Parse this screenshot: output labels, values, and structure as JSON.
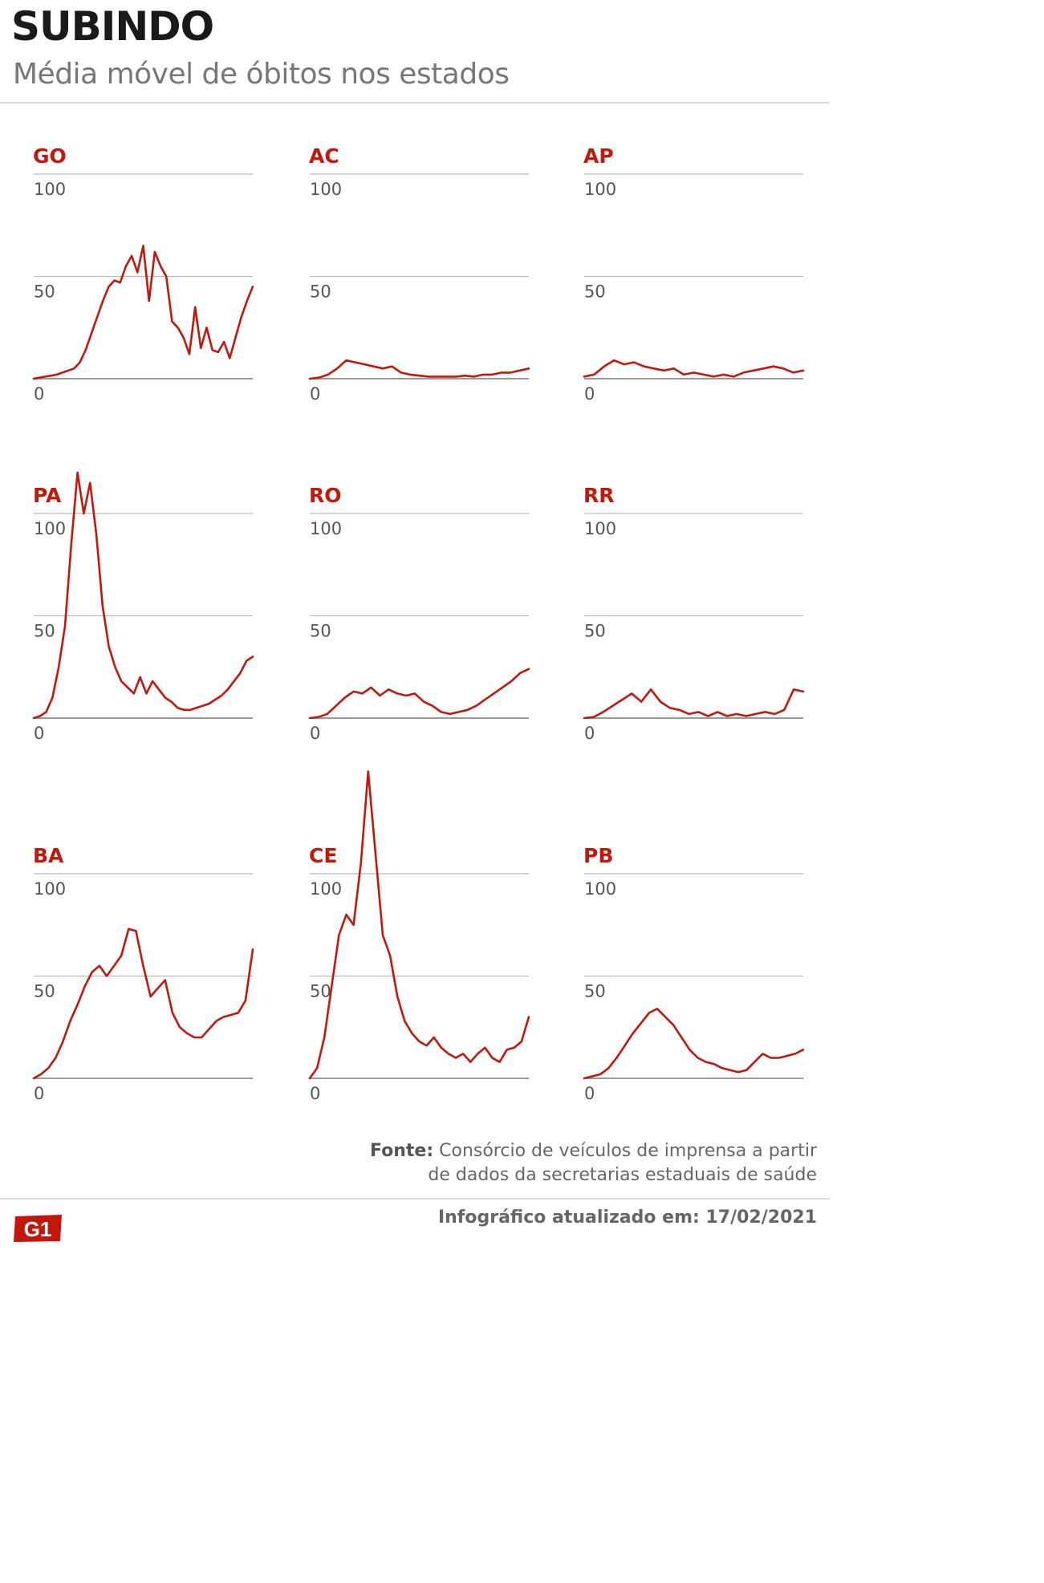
{
  "header": {
    "title": "SUBINDO",
    "subtitle": "Média móvel de óbitos nos estados"
  },
  "footer": {
    "source_label": "Fonte:",
    "source_line1": "Consórcio de veículos de imprensa a partir",
    "source_line2": "de dados da secretarias estaduais de saúde",
    "updated": "Infográfico atualizado em: 17/02/2021",
    "logo_text": "G1"
  },
  "colors": {
    "accent": "#c4170c",
    "grid": "#bbbbbb",
    "text_muted": "#777777"
  },
  "chart_data": [
    {
      "type": "line",
      "state": "GO",
      "ylim": [
        0,
        100
      ],
      "yticks": [
        0,
        50,
        100
      ],
      "series": [
        {
          "values": [
            0,
            0.5,
            1,
            1.5,
            2,
            3,
            4,
            5,
            8,
            14,
            22,
            30,
            38,
            45,
            48,
            47,
            55,
            60,
            52,
            65,
            38,
            62,
            55,
            50,
            28,
            25,
            20,
            12,
            35,
            15,
            25,
            14,
            13,
            18,
            10,
            20,
            30,
            38,
            45
          ]
        }
      ]
    },
    {
      "type": "line",
      "state": "AC",
      "ylim": [
        0,
        100
      ],
      "yticks": [
        0,
        50,
        100
      ],
      "series": [
        {
          "values": [
            0,
            0.5,
            2,
            5,
            9,
            8,
            7,
            6,
            5,
            6,
            3,
            2,
            1.5,
            1,
            1,
            1,
            1,
            1.5,
            1,
            2,
            2,
            3,
            3,
            4,
            5
          ]
        }
      ]
    },
    {
      "type": "line",
      "state": "AP",
      "ylim": [
        0,
        100
      ],
      "yticks": [
        0,
        50,
        100
      ],
      "series": [
        {
          "values": [
            1,
            2,
            6,
            9,
            7,
            8,
            6,
            5,
            4,
            5,
            2,
            3,
            2,
            1,
            2,
            1,
            3,
            4,
            5,
            6,
            5,
            3,
            4
          ]
        }
      ]
    },
    {
      "type": "line",
      "state": "PA",
      "ylim": [
        0,
        100
      ],
      "yticks": [
        0,
        50,
        100
      ],
      "series": [
        {
          "values": [
            0,
            1,
            3,
            10,
            25,
            45,
            85,
            120,
            100,
            115,
            90,
            55,
            35,
            25,
            18,
            15,
            12,
            20,
            12,
            18,
            14,
            10,
            8,
            5,
            4,
            4,
            5,
            6,
            7,
            9,
            11,
            14,
            18,
            22,
            28,
            30
          ]
        }
      ]
    },
    {
      "type": "line",
      "state": "RO",
      "ylim": [
        0,
        100
      ],
      "yticks": [
        0,
        50,
        100
      ],
      "series": [
        {
          "values": [
            0,
            0.5,
            2,
            6,
            10,
            13,
            12,
            15,
            11,
            14,
            12,
            11,
            12,
            8,
            6,
            3,
            2,
            3,
            4,
            6,
            9,
            12,
            15,
            18,
            22,
            24
          ]
        }
      ]
    },
    {
      "type": "line",
      "state": "RR",
      "ylim": [
        0,
        100
      ],
      "yticks": [
        0,
        50,
        100
      ],
      "series": [
        {
          "values": [
            0,
            0.5,
            3,
            6,
            9,
            12,
            8,
            14,
            8,
            5,
            4,
            2,
            3,
            1,
            3,
            1,
            2,
            1,
            2,
            3,
            2,
            4,
            14,
            13
          ]
        }
      ]
    },
    {
      "type": "line",
      "state": "BA",
      "ylim": [
        0,
        100
      ],
      "yticks": [
        0,
        50,
        100
      ],
      "series": [
        {
          "values": [
            0,
            2,
            5,
            10,
            18,
            28,
            36,
            45,
            52,
            55,
            50,
            55,
            60,
            73,
            72,
            55,
            40,
            44,
            48,
            32,
            25,
            22,
            20,
            20,
            24,
            28,
            30,
            31,
            32,
            38,
            63
          ]
        }
      ]
    },
    {
      "type": "line",
      "state": "CE",
      "ylim": [
        0,
        100
      ],
      "yticks": [
        0,
        50,
        100
      ],
      "series": [
        {
          "values": [
            0,
            5,
            20,
            45,
            70,
            80,
            75,
            105,
            150,
            110,
            70,
            60,
            40,
            28,
            22,
            18,
            16,
            20,
            15,
            12,
            10,
            12,
            8,
            12,
            15,
            10,
            8,
            14,
            15,
            18,
            30
          ]
        }
      ]
    },
    {
      "type": "line",
      "state": "PB",
      "ylim": [
        0,
        100
      ],
      "yticks": [
        0,
        50,
        100
      ],
      "series": [
        {
          "values": [
            0,
            1,
            2,
            5,
            10,
            16,
            22,
            27,
            32,
            34,
            30,
            26,
            20,
            14,
            10,
            8,
            7,
            5,
            4,
            3,
            4,
            8,
            12,
            10,
            10,
            11,
            12,
            14
          ]
        }
      ]
    }
  ]
}
